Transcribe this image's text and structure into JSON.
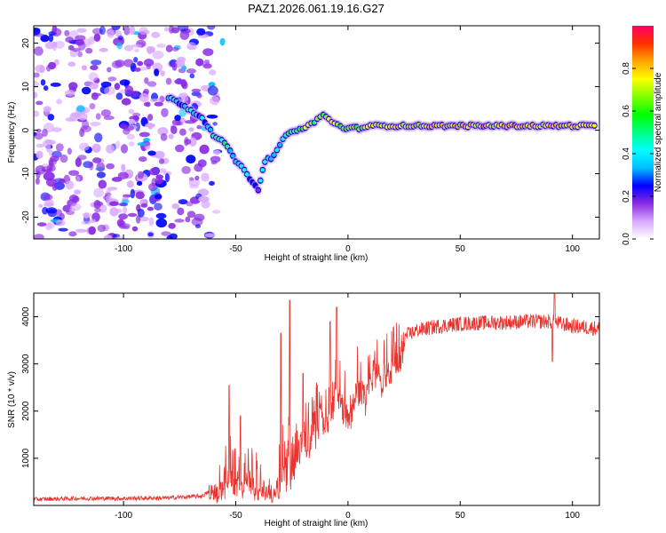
{
  "chart_data": [
    {
      "type": "heatmap",
      "title": "PAZ1.2026.061.19.16.G27",
      "xlabel": "Height of straight line (km)",
      "ylabel": "Frequency (Hz)",
      "xlim": [
        -140,
        112
      ],
      "ylim": [
        -25,
        24
      ],
      "xticks": [
        -100,
        -50,
        0,
        50,
        100
      ],
      "yticks": [
        -20,
        -10,
        0,
        10,
        20
      ],
      "colorbar": {
        "label": "Normalized spectral amplitude",
        "range": [
          0,
          1
        ],
        "ticks": [
          0.0,
          0.2,
          0.4,
          0.6,
          0.8
        ],
        "colors": [
          "#ffffff",
          "#d8a8ff",
          "#8a2be2",
          "#0000ff",
          "#00bfff",
          "#00ffff",
          "#00ff80",
          "#00ff00",
          "#80ff00",
          "#ffff00",
          "#ffa500",
          "#ff3000",
          "#ff0066"
        ]
      },
      "signal_path": [
        {
          "x": -80,
          "f": 7.5,
          "amp": 0.3
        },
        {
          "x": -74,
          "f": 6,
          "amp": 0.35
        },
        {
          "x": -70,
          "f": 4.5,
          "amp": 0.45
        },
        {
          "x": -65,
          "f": 3,
          "amp": 0.3
        },
        {
          "x": -60,
          "f": -1,
          "amp": 0.4
        },
        {
          "x": -55,
          "f": -3,
          "amp": 0.45
        },
        {
          "x": -50,
          "f": -7,
          "amp": 0.4
        },
        {
          "x": -45,
          "f": -10,
          "amp": 0.35
        },
        {
          "x": -40,
          "f": -14,
          "amp": 0.3
        },
        {
          "x": -37,
          "f": -7,
          "amp": 0.4
        },
        {
          "x": -33,
          "f": -6,
          "amp": 0.35
        },
        {
          "x": -29,
          "f": -2,
          "amp": 0.45
        },
        {
          "x": -24,
          "f": 0,
          "amp": 0.55
        },
        {
          "x": -19,
          "f": 0.5,
          "amp": 0.7
        },
        {
          "x": -15,
          "f": 2,
          "amp": 0.55
        },
        {
          "x": -11,
          "f": 3.5,
          "amp": 0.65
        },
        {
          "x": -6,
          "f": 1.5,
          "amp": 0.75
        },
        {
          "x": -2,
          "f": 0.5,
          "amp": 0.6
        },
        {
          "x": 5,
          "f": 0.5,
          "amp": 0.65
        },
        {
          "x": 10,
          "f": 1,
          "amp": 0.7
        },
        {
          "x": 20,
          "f": 1,
          "amp": 0.75
        },
        {
          "x": 35,
          "f": 1,
          "amp": 0.72
        },
        {
          "x": 50,
          "f": 1,
          "amp": 0.78
        },
        {
          "x": 65,
          "f": 1,
          "amp": 0.8
        },
        {
          "x": 80,
          "f": 1,
          "amp": 0.8
        },
        {
          "x": 95,
          "f": 1,
          "amp": 0.75
        },
        {
          "x": 111,
          "f": 1,
          "amp": 0.8
        }
      ]
    },
    {
      "type": "line",
      "xlabel": "Height of straight line (km)",
      "ylabel": "SNR (10 * v/v)",
      "xlim": [
        -140,
        112
      ],
      "ylim": [
        0,
        4500
      ],
      "xticks": [
        -100,
        -50,
        0,
        50,
        100
      ],
      "yticks": [
        1000,
        2000,
        3000,
        4000
      ],
      "series": [
        {
          "name": "SNR",
          "color": "#e8332e",
          "x": [
            -140,
            -120,
            -100,
            -80,
            -65,
            -58,
            -55,
            -52,
            -48,
            -45,
            -42,
            -38,
            -35,
            -32,
            -29,
            -27,
            -25,
            -22,
            -20,
            -17,
            -15,
            -12,
            -10,
            -7,
            -5,
            -2,
            0,
            3,
            5,
            8,
            10,
            13,
            15,
            18,
            20,
            23,
            26,
            30,
            35,
            40,
            50,
            60,
            70,
            80,
            90,
            100,
            112
          ],
          "values": [
            130,
            150,
            150,
            160,
            200,
            400,
            700,
            900,
            500,
            650,
            700,
            400,
            300,
            250,
            1300,
            1500,
            700,
            1500,
            1700,
            1500,
            1800,
            2200,
            1900,
            2400,
            2700,
            2300,
            2100,
            2600,
            2800,
            2500,
            2900,
            3000,
            2800,
            3100,
            3100,
            3300,
            3600,
            3700,
            3750,
            3800,
            3850,
            3870,
            3880,
            3900,
            3900,
            3800,
            3750
          ]
        }
      ],
      "spikes": [
        {
          "x": -53,
          "y": 2550
        },
        {
          "x": -48,
          "y": 1900
        },
        {
          "x": -30,
          "y": 3650
        },
        {
          "x": -26,
          "y": 4350
        },
        {
          "x": -20,
          "y": 2800
        },
        {
          "x": -8,
          "y": 3900
        },
        {
          "x": -5,
          "y": 4200
        },
        {
          "x": 92,
          "y": 4480
        },
        {
          "x": 91,
          "y": 3050
        }
      ]
    }
  ]
}
